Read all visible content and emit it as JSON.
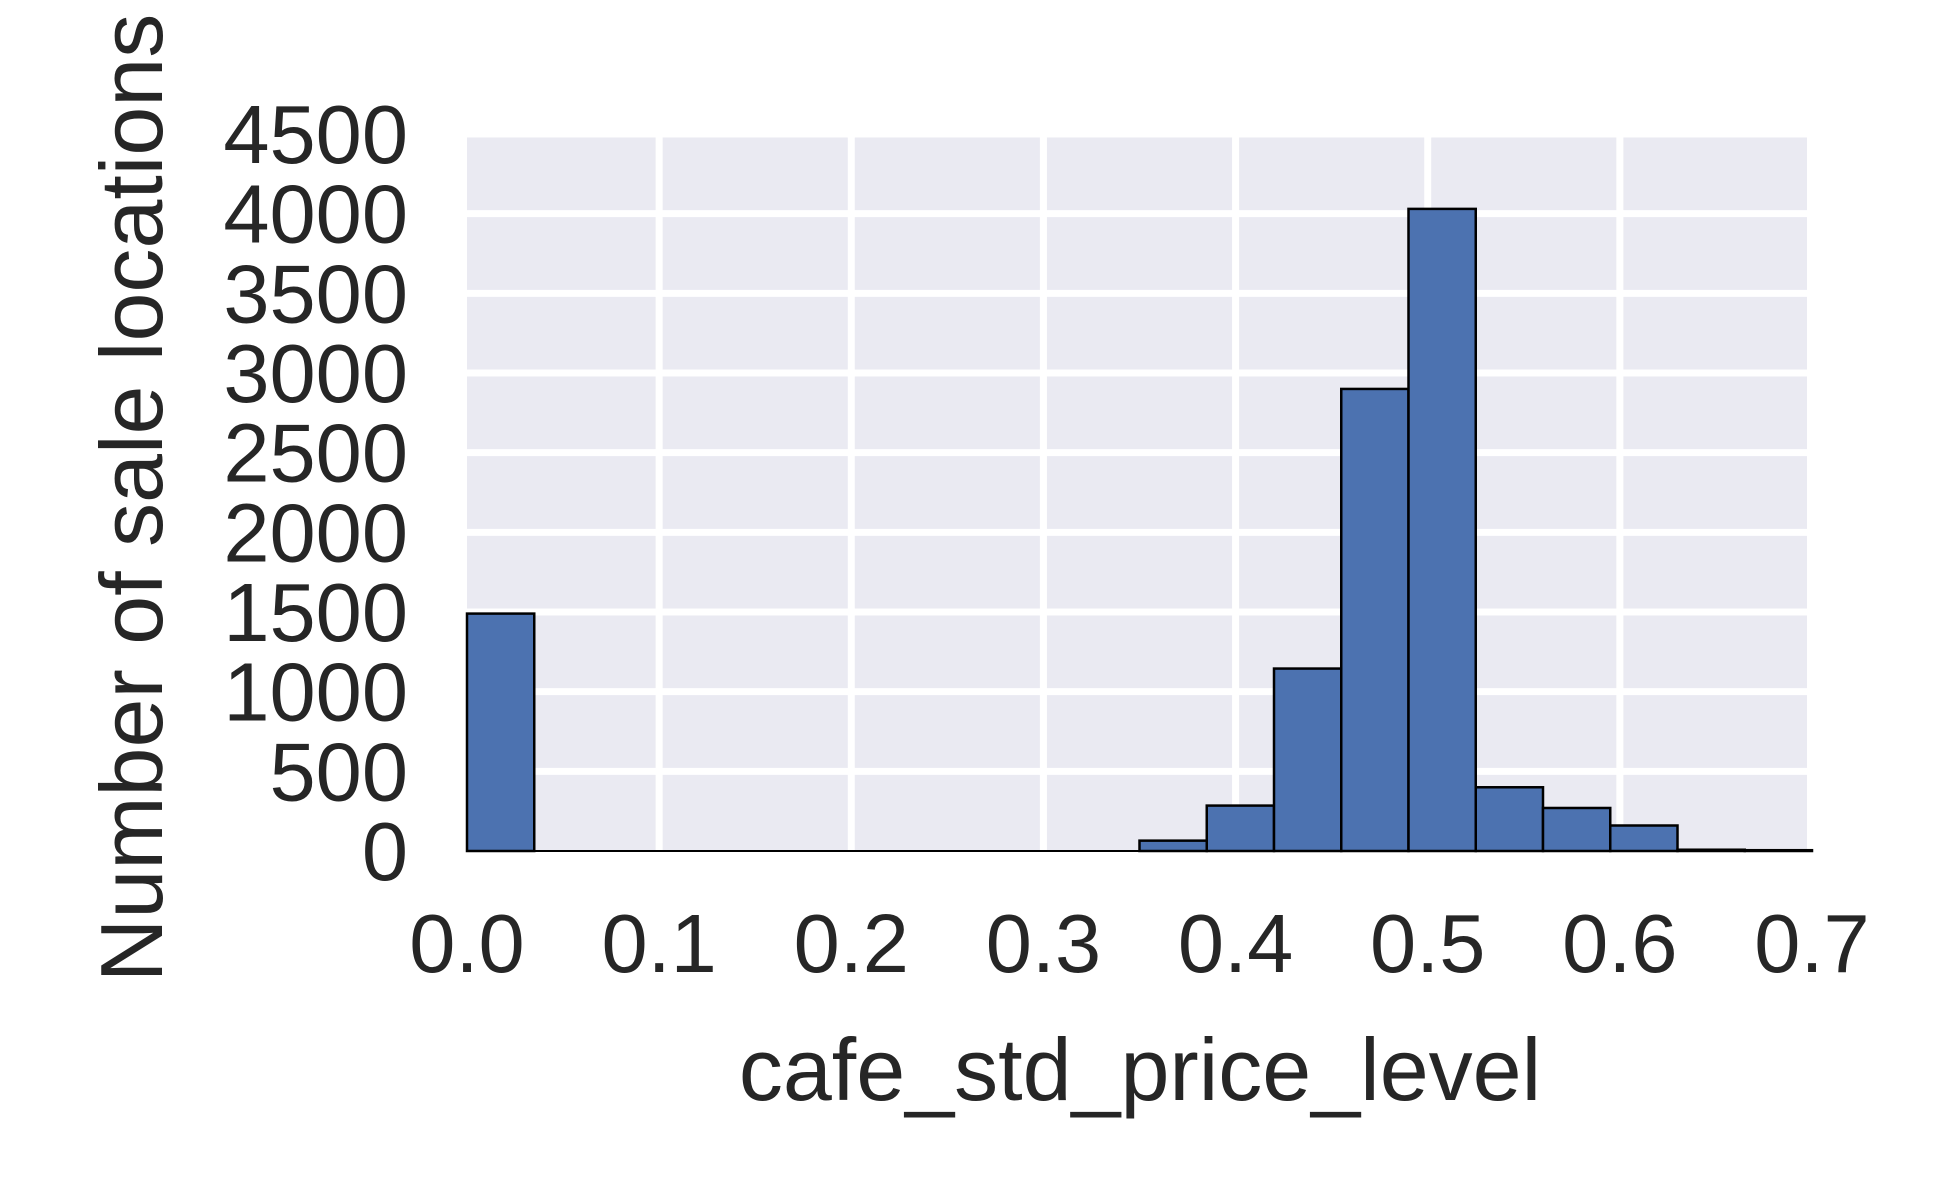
{
  "chart_data": {
    "type": "bar",
    "xlabel": "cafe_std_price_level",
    "ylabel": "Number of sale locations",
    "xlim": [
      0.0,
      0.7
    ],
    "ylim": [
      0,
      4500
    ],
    "x_ticks": [
      "0.0",
      "0.1",
      "0.2",
      "0.3",
      "0.4",
      "0.5",
      "0.6",
      "0.7"
    ],
    "y_ticks": [
      "0",
      "500",
      "1000",
      "1500",
      "2000",
      "2500",
      "3000",
      "3500",
      "4000",
      "4500"
    ],
    "grid": true,
    "background": "#eaeaf2",
    "bar_color": "#4c72b0",
    "bin_edges": [
      0.0,
      0.035,
      0.07,
      0.105,
      0.14,
      0.175,
      0.21,
      0.245,
      0.28,
      0.315,
      0.35,
      0.385,
      0.42,
      0.455,
      0.49,
      0.525,
      0.56,
      0.595,
      0.63,
      0.665,
      0.7
    ],
    "counts": [
      1490,
      0,
      0,
      0,
      0,
      0,
      0,
      0,
      0,
      0,
      65,
      285,
      1145,
      2900,
      4030,
      400,
      270,
      160,
      8,
      5
    ]
  }
}
